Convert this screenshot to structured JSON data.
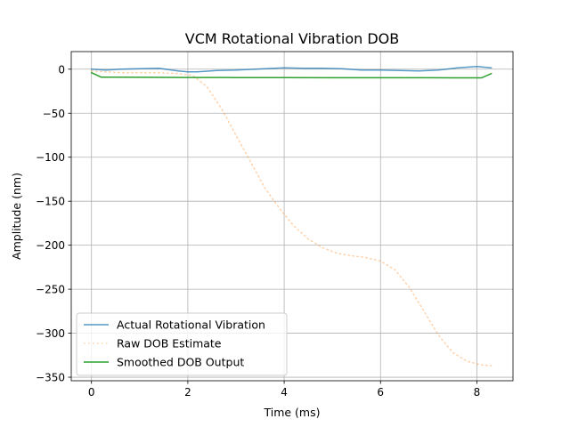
{
  "chart_data": {
    "type": "line",
    "title": "VCM Rotational Vibration DOB",
    "xlabel": "Time (ms)",
    "ylabel": "Amplitude (nm)",
    "xlim": [
      -0.42,
      8.75
    ],
    "ylim": [
      -354,
      20
    ],
    "xticks": [
      0,
      2,
      4,
      6,
      8
    ],
    "yticks": [
      0,
      -50,
      -100,
      -150,
      -200,
      -250,
      -300,
      -350
    ],
    "grid": true,
    "legend_position": "lower-left",
    "series": [
      {
        "name": "Actual Rotational Vibration",
        "color": "#1f77b4",
        "style": "solid",
        "x": [
          0,
          0.3,
          0.6,
          1.0,
          1.4,
          1.8,
          2.0,
          2.2,
          2.6,
          3.0,
          3.4,
          3.8,
          4.0,
          4.4,
          4.8,
          5.2,
          5.6,
          6.0,
          6.4,
          6.8,
          7.2,
          7.6,
          8.0,
          8.3
        ],
        "y": [
          0,
          -1,
          0,
          0.5,
          1,
          -2,
          -3,
          -3,
          -1.5,
          -1,
          0,
          1,
          1.5,
          1,
          1,
          0.5,
          -1,
          -1,
          -1.5,
          -2,
          -1,
          1.5,
          3,
          1.5
        ]
      },
      {
        "name": "Raw DOB Estimate",
        "color": "#ff7f0e",
        "style": "dotted",
        "x": [
          0,
          0.3,
          0.6,
          1.0,
          1.4,
          1.8,
          2.1,
          2.4,
          2.7,
          3.0,
          3.3,
          3.6,
          3.9,
          4.2,
          4.5,
          4.8,
          5.1,
          5.4,
          5.7,
          6.0,
          6.3,
          6.6,
          6.9,
          7.2,
          7.5,
          7.8,
          8.1,
          8.3
        ],
        "y": [
          -2,
          -3,
          -4,
          -4,
          -4,
          -5,
          -7,
          -20,
          -45,
          -75,
          -105,
          -135,
          -158,
          -178,
          -193,
          -203,
          -209,
          -212,
          -214,
          -218,
          -228,
          -248,
          -275,
          -302,
          -322,
          -332,
          -336,
          -337
        ]
      },
      {
        "name": "Smoothed DOB Output",
        "color": "#2ca02c",
        "style": "solid",
        "x": [
          0,
          0.2,
          1.0,
          2.0,
          3.0,
          4.0,
          5.0,
          6.0,
          7.0,
          8.0,
          8.1,
          8.3
        ],
        "y": [
          -4,
          -9,
          -9.2,
          -9.4,
          -9.5,
          -9.6,
          -9.7,
          -9.7,
          -9.7,
          -9.8,
          -9.8,
          -5
        ]
      }
    ]
  }
}
